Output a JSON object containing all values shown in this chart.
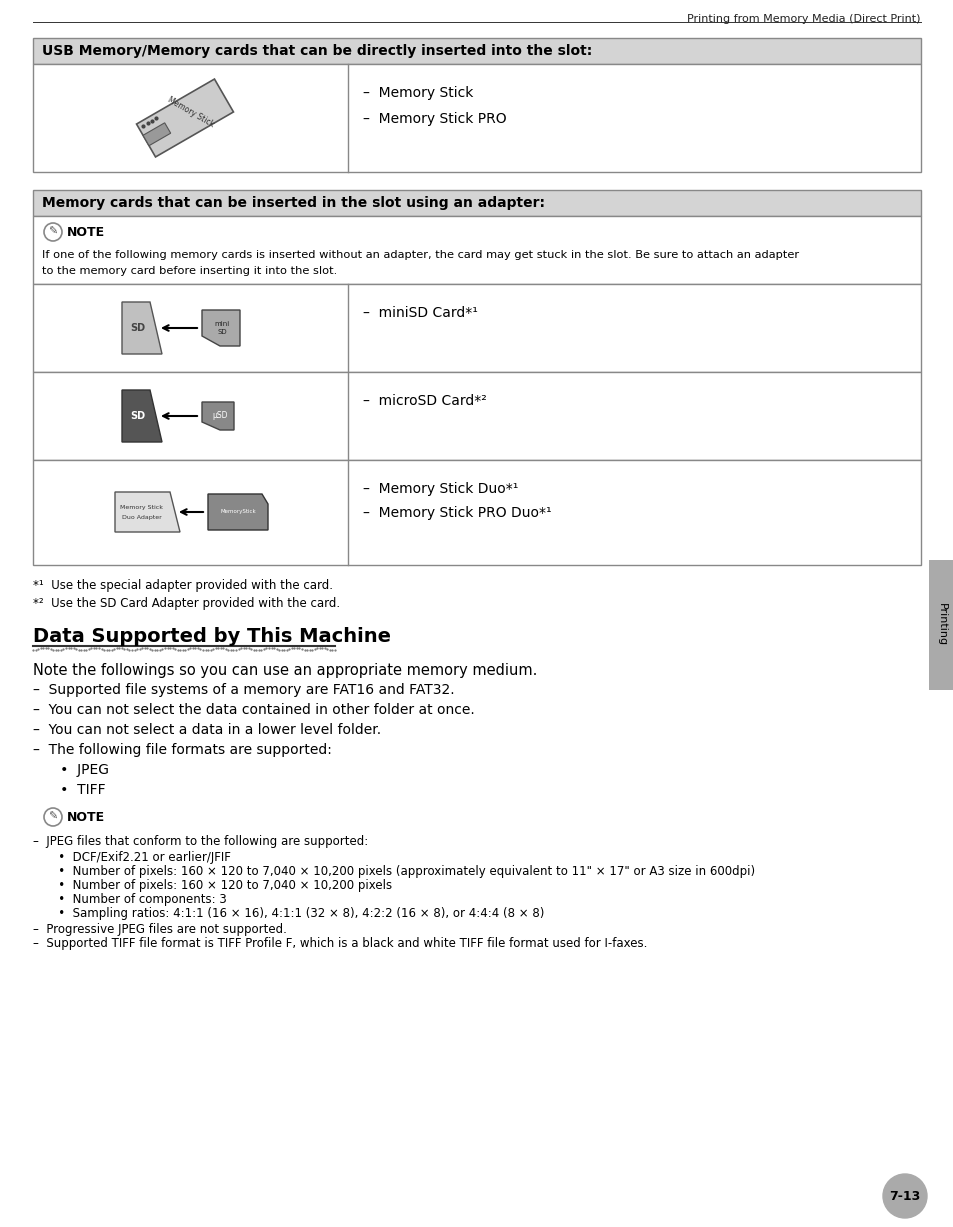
{
  "bg_color": "#ffffff",
  "header_text": "Printing from Memory Media (Direct Print)",
  "table1_header": "USB Memory/Memory cards that can be directly inserted into the slot:",
  "table1_items": [
    "–  Memory Stick",
    "–  Memory Stick PRO"
  ],
  "table2_header": "Memory cards that can be inserted in the slot using an adapter:",
  "note_line1": "If one of the following memory cards is inserted without an adapter, the card may get stuck in the slot. Be sure to attach an adapter",
  "note_line2": "to the memory card before inserting it into the slot.",
  "row1_text": "–  miniSD Card*¹",
  "row2_text": "–  microSD Card*²",
  "row3_text1": "–  Memory Stick Duo*¹",
  "row3_text2": "–  Memory Stick PRO Duo*¹",
  "footnote1": "*¹  Use the special adapter provided with the card.",
  "footnote2": "*²  Use the SD Card Adapter provided with the card.",
  "section_title": "Data Supported by This Machine",
  "body_line0": "Note the followings so you can use an appropriate memory medium.",
  "body_line1": "–  Supported file systems of a memory are FAT16 and FAT32.",
  "body_line2": "–  You can not select the data contained in other folder at once.",
  "body_line3": "–  You can not select a data in a lower level folder.",
  "body_line4": "–  The following file formats are supported:",
  "body_line5": "   •  JPEG",
  "body_line6": "   •  TIFF",
  "note2_intro": "–  JPEG files that conform to the following are supported:",
  "note2_b1": "   •  DCF/Exif2.21 or earlier/JFIF",
  "note2_b2": "   •  Number of pixels: 160 × 120 to 7,040 × 10,200 pixels (approximately equivalent to 11\" × 17\" or A3 size in 600dpi)",
  "note2_b3": "   •  Number of pixels: 160 × 120 to 7,040 × 10,200 pixels",
  "note2_b4": "   •  Number of components: 3",
  "note2_b5": "   •  Sampling ratios: 4:1:1 (16 × 16), 4:1:1 (32 × 8), 4:2:2 (16 × 8), or 4:4:4 (8 × 8)",
  "note2_e1": "–  Progressive JPEG files are not supported.",
  "note2_e2": "–  Supported TIFF file format is TIFF Profile F, which is a black and white TIFF file format used for I-faxes.",
  "page_num": "7-13",
  "sidebar_text": "Printing",
  "header_color": "#d4d4d4",
  "border_color": "#888888",
  "text_color": "#000000",
  "sidebar_color": "#aaaaaa",
  "badge_color": "#aaaaaa"
}
